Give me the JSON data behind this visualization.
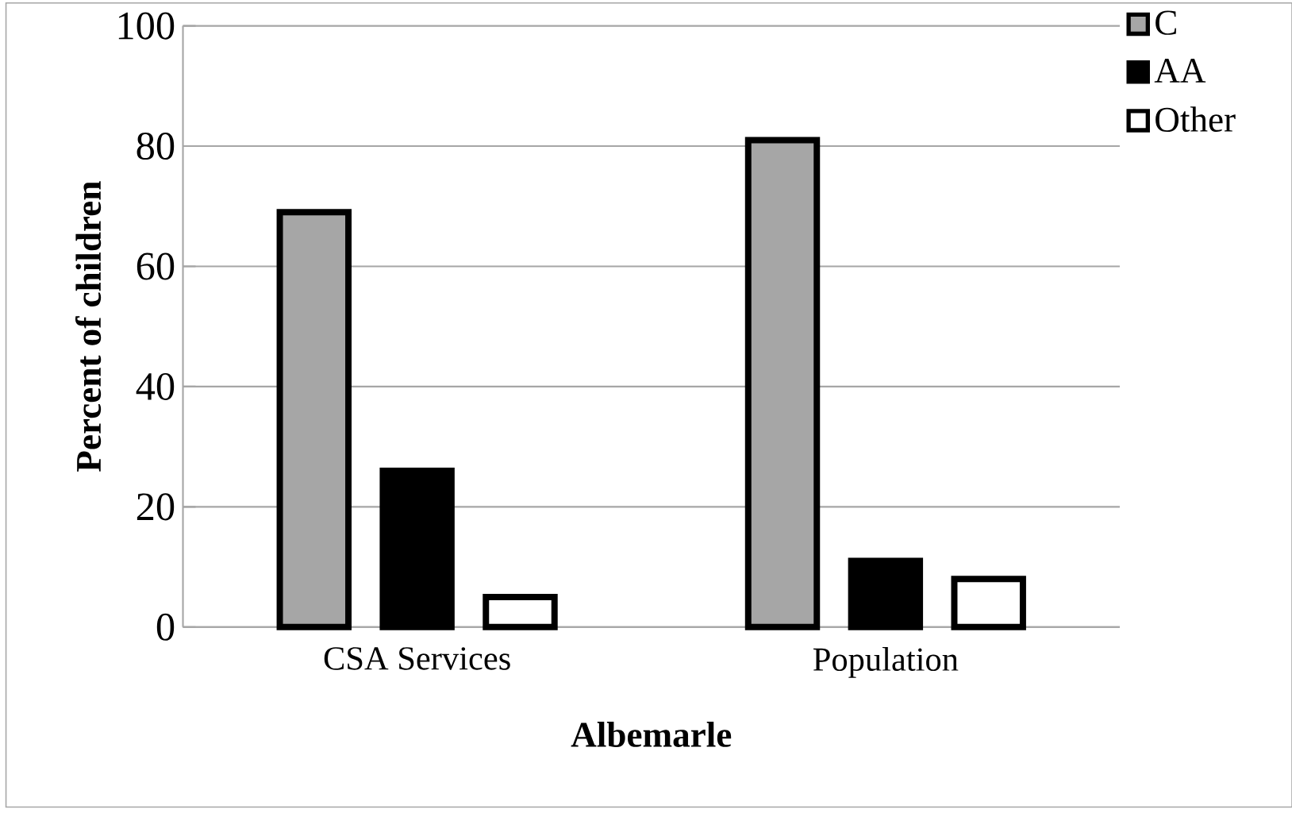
{
  "chart_data": {
    "type": "bar",
    "xlabel": "Albemarle",
    "ylabel": "Percent of children",
    "categories": [
      "CSA Services",
      "Population"
    ],
    "series": [
      {
        "name": "C",
        "color": "#a6a6a6",
        "values": [
          69,
          81
        ]
      },
      {
        "name": "AA",
        "color": "#000000",
        "values": [
          26,
          11
        ]
      },
      {
        "name": "Other",
        "color": "#ffffff",
        "values": [
          5,
          8
        ]
      }
    ],
    "ylim": [
      0,
      100
    ],
    "yticks": [
      0,
      20,
      40,
      60,
      80,
      100
    ],
    "grid": "y",
    "legend": "top right"
  }
}
